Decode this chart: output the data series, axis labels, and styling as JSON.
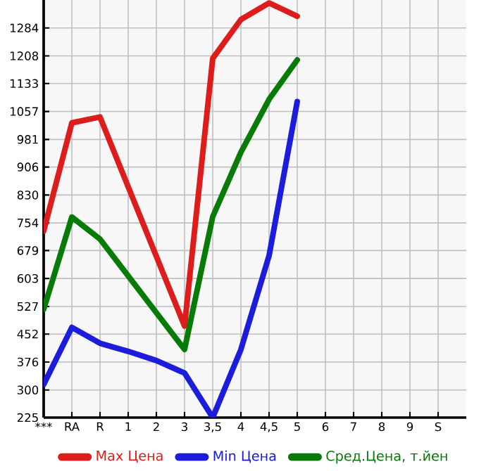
{
  "chart_data": {
    "type": "line",
    "categories": [
      "***",
      "RA",
      "R",
      "1",
      "2",
      "3",
      "3,5",
      "4",
      "4,5",
      "5",
      "6",
      "7",
      "8",
      "9",
      "S"
    ],
    "series": [
      {
        "name": "Max Цена",
        "color": "#dd1c1c",
        "values": [
          732,
          1026,
          1042,
          852,
          663,
          474,
          1201,
          1307,
          1352,
          1316,
          null,
          null,
          null,
          null,
          null
        ]
      },
      {
        "name": "Min Цена",
        "color": "#1c1cdd",
        "values": [
          315,
          470,
          427,
          405,
          380,
          346,
          225,
          410,
          665,
          1084,
          null,
          null,
          null,
          null,
          null
        ]
      },
      {
        "name": "Сред.Цена, т.йен",
        "color": "#087a08",
        "values": [
          519,
          770,
          710,
          610,
          510,
          410,
          771,
          946,
          1090,
          1197,
          null,
          null,
          null,
          null,
          null
        ]
      }
    ],
    "ylim": [
      225,
      1360
    ],
    "yticks": [
      225,
      300,
      376,
      452,
      527,
      603,
      679,
      754,
      830,
      906,
      981,
      1057,
      1133,
      1208,
      1284
    ],
    "grid": true,
    "legend": "bottom",
    "marker": "none",
    "line_style": "solid"
  }
}
